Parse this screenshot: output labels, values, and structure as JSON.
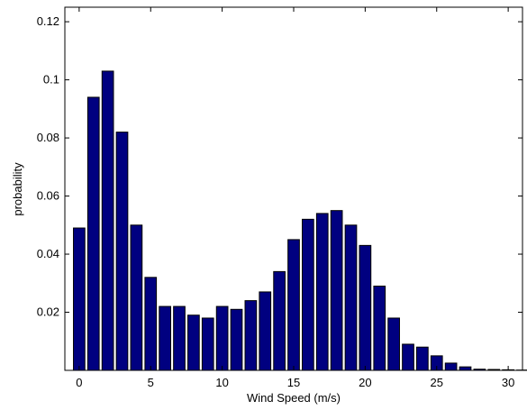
{
  "chart_data": {
    "type": "bar",
    "title": "",
    "xlabel": "Wind Speed (m/s)",
    "ylabel": "probability",
    "xlim": [
      -1,
      31
    ],
    "ylim": [
      0,
      0.125
    ],
    "x": [
      0,
      1,
      2,
      3,
      4,
      5,
      6,
      7,
      8,
      9,
      10,
      11,
      12,
      13,
      14,
      15,
      16,
      17,
      18,
      19,
      20,
      21,
      22,
      23,
      24,
      25,
      26,
      27,
      28,
      29,
      30,
      31
    ],
    "values": [
      0.049,
      0.094,
      0.103,
      0.082,
      0.05,
      0.032,
      0.022,
      0.022,
      0.019,
      0.018,
      0.022,
      0.021,
      0.024,
      0.027,
      0.034,
      0.045,
      0.052,
      0.054,
      0.055,
      0.05,
      0.043,
      0.029,
      0.018,
      0.009,
      0.008,
      0.005,
      0.0025,
      0.0012,
      0.0004,
      0.0003,
      0.0002,
      0.0001
    ],
    "xticks": [
      0,
      5,
      10,
      15,
      20,
      25,
      30
    ],
    "xtick_labels": [
      "0",
      "5",
      "10",
      "15",
      "20",
      "25",
      "30"
    ],
    "yticks": [
      0.02,
      0.04,
      0.06,
      0.08,
      0.1,
      0.12
    ],
    "ytick_labels": [
      "0.02",
      "0.04",
      "0.06",
      "0.08",
      "0.1",
      "0.12"
    ],
    "grid": false,
    "bar_color": "#000080",
    "bar_edge_color": "#000000"
  }
}
